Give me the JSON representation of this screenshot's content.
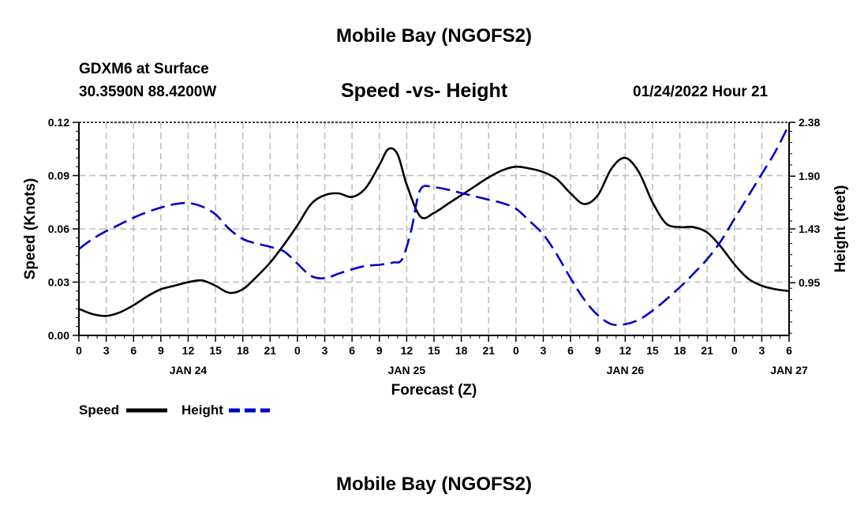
{
  "header": {
    "title": "Mobile Bay (NGOFS2)",
    "station": "GDXM6 at Surface",
    "coords": "30.3590N  88.4200W",
    "subtitle": "Speed -vs- Height",
    "datetime": "01/24/2022 Hour 21"
  },
  "footer": {
    "title": "Mobile Bay (NGOFS2)"
  },
  "chart_data": {
    "type": "line",
    "xlabel": "Forecast (Z)",
    "ylabel_left": "Speed (Knots)",
    "ylabel_right": "Height (feet)",
    "x_unit": "hours from JAN 24 00Z",
    "x_range": [
      0,
      78
    ],
    "x_tick_labels": [
      "0",
      "3",
      "6",
      "9",
      "12",
      "15",
      "18",
      "21",
      "0",
      "3",
      "6",
      "9",
      "12",
      "15",
      "18",
      "21",
      "0",
      "3",
      "6",
      "9",
      "12",
      "15",
      "18",
      "21",
      "0",
      "3",
      "6"
    ],
    "date_labels": [
      {
        "label": "JAN 24",
        "hour": 12
      },
      {
        "label": "JAN 25",
        "hour": 36
      },
      {
        "label": "JAN 26",
        "hour": 60
      },
      {
        "label": "JAN 27",
        "hour": 78
      }
    ],
    "y_left": {
      "range": [
        0,
        0.12
      ],
      "ticks": [
        "0.00",
        "0.03",
        "0.06",
        "0.09",
        "0.12"
      ]
    },
    "y_right": {
      "range": [
        0.48,
        2.38
      ],
      "ticks": [
        "0.95",
        "1.43",
        "1.90",
        "2.38"
      ]
    },
    "grid": true,
    "legend_position": "bottom-left",
    "colors": {
      "speed": "#000000",
      "height": "#0000cc",
      "grid": "#bbbbbb"
    },
    "series": [
      {
        "name": "Speed",
        "axis": "left",
        "style": "solid",
        "x": [
          0,
          1.5,
          3,
          4.5,
          6,
          7.5,
          9,
          10.5,
          12,
          13.5,
          15,
          16.5,
          18,
          19.5,
          21,
          22.5,
          24,
          25.5,
          27,
          28.5,
          30,
          31.5,
          33,
          34,
          35,
          36,
          37.5,
          39,
          40.5,
          42,
          43.5,
          45,
          46.5,
          48,
          49.5,
          51,
          52.5,
          54,
          55.5,
          57,
          58.5,
          60,
          61.5,
          63,
          64.5,
          66,
          67.5,
          69,
          70.5,
          72,
          73.5,
          75,
          76.5,
          78
        ],
        "values": [
          0.015,
          0.012,
          0.011,
          0.013,
          0.017,
          0.022,
          0.026,
          0.028,
          0.03,
          0.031,
          0.028,
          0.024,
          0.026,
          0.033,
          0.041,
          0.051,
          0.062,
          0.074,
          0.079,
          0.08,
          0.078,
          0.083,
          0.096,
          0.105,
          0.102,
          0.085,
          0.067,
          0.069,
          0.074,
          0.079,
          0.084,
          0.089,
          0.093,
          0.095,
          0.094,
          0.092,
          0.088,
          0.08,
          0.074,
          0.079,
          0.094,
          0.1,
          0.092,
          0.075,
          0.063,
          0.061,
          0.061,
          0.058,
          0.05,
          0.04,
          0.032,
          0.028,
          0.026,
          0.025
        ]
      },
      {
        "name": "Height",
        "axis": "right",
        "style": "dashed",
        "x": [
          0,
          1.5,
          3,
          4.5,
          6,
          7.5,
          9,
          10.5,
          12,
          13.5,
          15,
          16.5,
          18,
          19.5,
          21,
          22.5,
          24,
          25.5,
          27,
          28.5,
          30,
          31.5,
          33,
          34.5,
          35.5,
          36.5,
          37.5,
          39,
          40.5,
          42,
          43.5,
          45,
          46.5,
          48,
          49.5,
          51,
          52.5,
          54,
          55.5,
          57,
          58.5,
          60,
          61.5,
          63,
          64.5,
          66,
          67.5,
          69,
          70.5,
          72,
          73.5,
          75,
          76.5,
          78
        ],
        "values": [
          1.25,
          1.34,
          1.41,
          1.47,
          1.53,
          1.58,
          1.62,
          1.65,
          1.66,
          1.63,
          1.56,
          1.43,
          1.34,
          1.3,
          1.27,
          1.23,
          1.12,
          1.01,
          0.99,
          1.03,
          1.07,
          1.1,
          1.11,
          1.13,
          1.16,
          1.42,
          1.78,
          1.8,
          1.78,
          1.75,
          1.72,
          1.69,
          1.66,
          1.61,
          1.5,
          1.38,
          1.2,
          0.99,
          0.8,
          0.66,
          0.58,
          0.58,
          0.62,
          0.7,
          0.8,
          0.91,
          1.03,
          1.16,
          1.32,
          1.52,
          1.72,
          1.92,
          2.12,
          2.36
        ]
      }
    ]
  }
}
